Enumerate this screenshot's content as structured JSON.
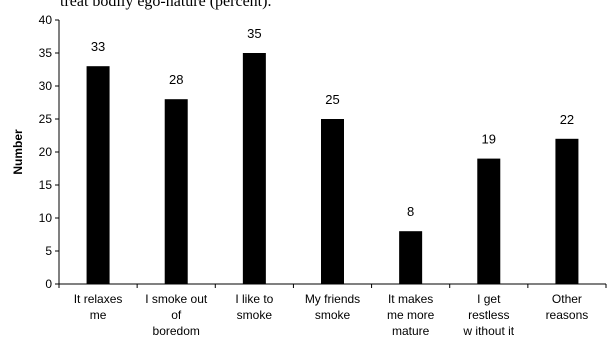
{
  "header_fragment": "treat bodily ego-nature (percent).",
  "chart_data": {
    "type": "bar",
    "title": "",
    "xlabel": "",
    "ylabel": "Number",
    "ylim": [
      0,
      40
    ],
    "yticks": [
      0,
      5,
      10,
      15,
      20,
      25,
      30,
      35,
      40
    ],
    "grid": false,
    "legend": "none",
    "bar_color": "#000000",
    "categories": [
      [
        "It relaxes",
        "me"
      ],
      [
        "I smoke out",
        "of",
        "boredom"
      ],
      [
        "I like to",
        "smoke"
      ],
      [
        "My friends",
        "smoke"
      ],
      [
        "It makes",
        "me more",
        "mature"
      ],
      [
        "I get",
        "restless",
        "w ithout it"
      ],
      [
        "Other",
        "reasons"
      ]
    ],
    "values": [
      33,
      28,
      35,
      25,
      8,
      19,
      22
    ]
  }
}
